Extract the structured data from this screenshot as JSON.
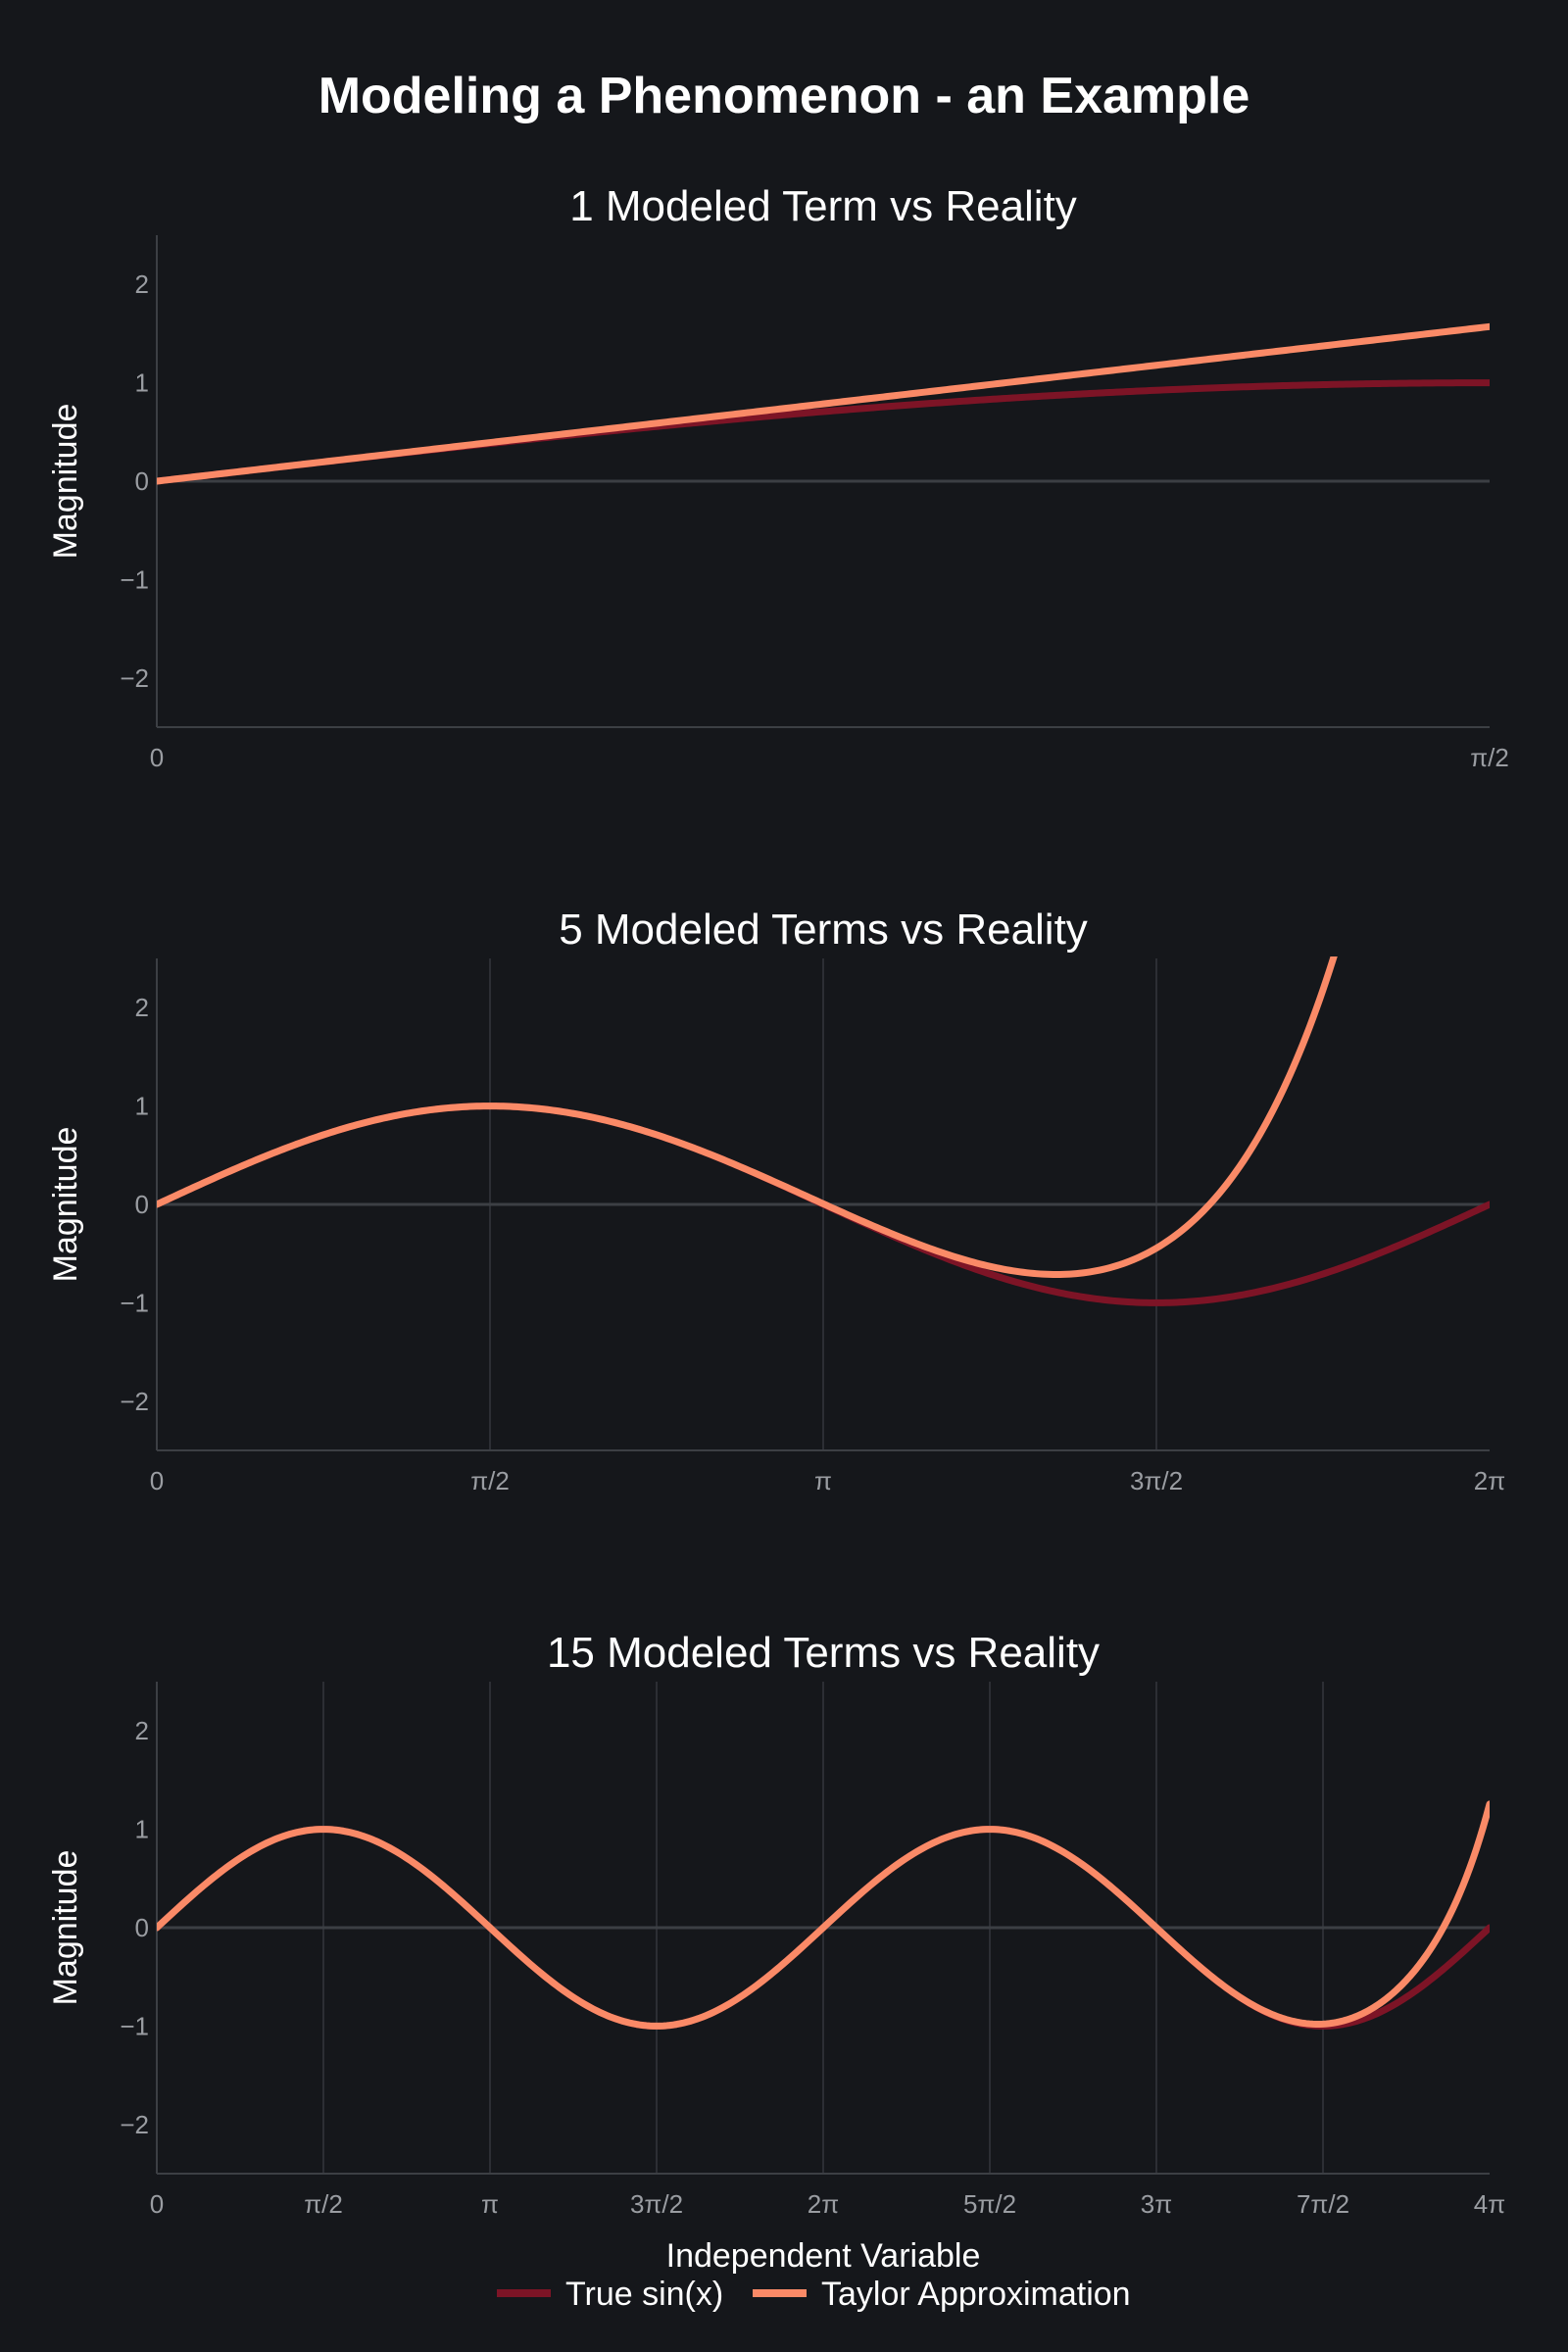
{
  "title": "Modeling a Phenomenon - an Example",
  "colors": {
    "background": "#15171b",
    "true_series": "#7d1426",
    "approx_series": "#fa8a67",
    "grid": "#34373c",
    "zero_line": "#3c3f44",
    "tick_text": "#9a9da2"
  },
  "legend": {
    "placement": "bottom-center",
    "items": [
      "True sin(x)",
      "Taylor Approximation"
    ]
  },
  "xlabel": "Independent Variable",
  "chart_data": [
    {
      "type": "line",
      "title": "1 Modeled Term vs Reality",
      "ylabel": "Magnitude",
      "xlabel": "",
      "terms": 1,
      "xlim": [
        0,
        1.5708
      ],
      "ylim": [
        -2.5,
        2.5
      ],
      "x_ticks": [
        "0",
        "π/2"
      ],
      "y_ticks": [
        "2",
        "1",
        "0",
        "−1",
        "−2"
      ],
      "grid": "vertical",
      "series": [
        {
          "name": "True sin(x)",
          "function": "sin(x)"
        },
        {
          "name": "Taylor Approximation",
          "function": "Taylor series of sin(x), 1 term"
        }
      ]
    },
    {
      "type": "line",
      "title": "5 Modeled Terms vs Reality",
      "ylabel": "Magnitude",
      "xlabel": "",
      "terms": 5,
      "xlim": [
        0,
        6.2832
      ],
      "ylim": [
        -2.5,
        2.5
      ],
      "x_ticks": [
        "0",
        "π/2",
        "π",
        "3π/2",
        "2π"
      ],
      "y_ticks": [
        "2",
        "1",
        "0",
        "−1",
        "−2"
      ],
      "grid": "vertical",
      "series": [
        {
          "name": "True sin(x)",
          "function": "sin(x)"
        },
        {
          "name": "Taylor Approximation",
          "function": "Taylor series of sin(x), 5 terms"
        }
      ]
    },
    {
      "type": "line",
      "title": "15 Modeled Terms vs Reality",
      "ylabel": "Magnitude",
      "xlabel": "Independent Variable",
      "terms": 15,
      "xlim": [
        0,
        12.5664
      ],
      "ylim": [
        -2.5,
        2.5
      ],
      "x_ticks": [
        "0",
        "π/2",
        "π",
        "3π/2",
        "2π",
        "5π/2",
        "3π",
        "7π/2",
        "4π"
      ],
      "y_ticks": [
        "2",
        "1",
        "0",
        "−1",
        "−2"
      ],
      "grid": "vertical",
      "series": [
        {
          "name": "True sin(x)",
          "function": "sin(x)"
        },
        {
          "name": "Taylor Approximation",
          "function": "Taylor series of sin(x), 15 terms"
        }
      ]
    }
  ]
}
